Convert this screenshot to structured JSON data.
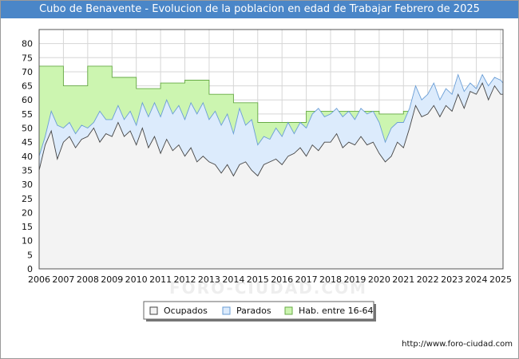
{
  "chart_data": {
    "type": "area",
    "title": "Cubo de Benavente - Evolucion de la poblacion en edad de Trabajar Febrero de 2025",
    "xlabel": "",
    "ylabel": "",
    "xlim": [
      2006,
      2025.1
    ],
    "ylim": [
      0,
      85
    ],
    "x_ticks": [
      "2006",
      "2007",
      "2008",
      "2009",
      "2010",
      "2011",
      "2012",
      "2013",
      "2014",
      "2015",
      "2016",
      "2017",
      "2018",
      "2019",
      "2020",
      "2021",
      "2022",
      "2023",
      "2024",
      "2025"
    ],
    "y_ticks": [
      0,
      5,
      10,
      15,
      20,
      25,
      30,
      35,
      40,
      45,
      50,
      55,
      60,
      65,
      70,
      75,
      80
    ],
    "grid": true,
    "legend": [
      "Ocupados",
      "Parados",
      "Hab. entre 16-64"
    ],
    "series": [
      {
        "name": "Hab. entre 16-64",
        "color": "#ccf5b0",
        "line": "#66aa44",
        "step": true,
        "x": [
          2006.0,
          2007.0,
          2008.0,
          2009.0,
          2010.0,
          2011.0,
          2012.0,
          2013.0,
          2014.0,
          2015.0,
          2016.0,
          2017.0,
          2018.0,
          2019.0,
          2020.0,
          2021.0,
          2022.0,
          2023.0,
          2024.0,
          2025.0
        ],
        "values": [
          72,
          65,
          72,
          68,
          64,
          66,
          67,
          62,
          59,
          52,
          52,
          56,
          56,
          56,
          55,
          56,
          60,
          62,
          64,
          66
        ]
      },
      {
        "name": "Parados",
        "color": "#dcebfc",
        "line": "#6a9ed6",
        "x": [
          2006.0,
          2006.25,
          2006.5,
          2006.75,
          2007.0,
          2007.25,
          2007.5,
          2007.75,
          2008.0,
          2008.25,
          2008.5,
          2008.75,
          2009.0,
          2009.25,
          2009.5,
          2009.75,
          2010.0,
          2010.25,
          2010.5,
          2010.75,
          2011.0,
          2011.25,
          2011.5,
          2011.75,
          2012.0,
          2012.25,
          2012.5,
          2012.75,
          2013.0,
          2013.25,
          2013.5,
          2013.75,
          2014.0,
          2014.25,
          2014.5,
          2014.75,
          2015.0,
          2015.25,
          2015.5,
          2015.75,
          2016.0,
          2016.25,
          2016.5,
          2016.75,
          2017.0,
          2017.25,
          2017.5,
          2017.75,
          2018.0,
          2018.25,
          2018.5,
          2018.75,
          2019.0,
          2019.25,
          2019.5,
          2019.75,
          2020.0,
          2020.25,
          2020.5,
          2020.75,
          2021.0,
          2021.25,
          2021.5,
          2021.75,
          2022.0,
          2022.25,
          2022.5,
          2022.75,
          2023.0,
          2023.25,
          2023.5,
          2023.75,
          2024.0,
          2024.25,
          2024.5,
          2024.75,
          2025.0,
          2025.1
        ],
        "values": [
          40,
          47,
          56,
          51,
          50,
          52,
          48,
          51,
          50,
          52,
          56,
          53,
          53,
          58,
          53,
          56,
          51,
          59,
          54,
          59,
          54,
          60,
          55,
          58,
          53,
          59,
          55,
          59,
          53,
          56,
          51,
          55,
          48,
          57,
          51,
          53,
          44,
          47,
          46,
          50,
          47,
          52,
          48,
          52,
          50,
          55,
          57,
          54,
          55,
          57,
          54,
          56,
          53,
          57,
          55,
          56,
          52,
          45,
          50,
          52,
          52,
          57,
          65,
          60,
          62,
          66,
          60,
          64,
          62,
          69,
          63,
          66,
          64,
          69,
          65,
          68,
          67,
          66
        ]
      },
      {
        "name": "Ocupados",
        "color": "#f3f3f3",
        "line": "#444444",
        "x": [
          2006.0,
          2006.25,
          2006.5,
          2006.75,
          2007.0,
          2007.25,
          2007.5,
          2007.75,
          2008.0,
          2008.25,
          2008.5,
          2008.75,
          2009.0,
          2009.25,
          2009.5,
          2009.75,
          2010.0,
          2010.25,
          2010.5,
          2010.75,
          2011.0,
          2011.25,
          2011.5,
          2011.75,
          2012.0,
          2012.25,
          2012.5,
          2012.75,
          2013.0,
          2013.25,
          2013.5,
          2013.75,
          2014.0,
          2014.25,
          2014.5,
          2014.75,
          2015.0,
          2015.25,
          2015.5,
          2015.75,
          2016.0,
          2016.25,
          2016.5,
          2016.75,
          2017.0,
          2017.25,
          2017.5,
          2017.75,
          2018.0,
          2018.25,
          2018.5,
          2018.75,
          2019.0,
          2019.25,
          2019.5,
          2019.75,
          2020.0,
          2020.25,
          2020.5,
          2020.75,
          2021.0,
          2021.25,
          2021.5,
          2021.75,
          2022.0,
          2022.25,
          2022.5,
          2022.75,
          2023.0,
          2023.25,
          2023.5,
          2023.75,
          2024.0,
          2024.25,
          2024.5,
          2024.75,
          2025.0,
          2025.1
        ],
        "values": [
          35,
          44,
          49,
          39,
          45,
          47,
          43,
          46,
          47,
          50,
          45,
          48,
          47,
          52,
          47,
          49,
          44,
          50,
          43,
          47,
          41,
          46,
          42,
          44,
          40,
          43,
          38,
          40,
          38,
          37,
          34,
          37,
          33,
          37,
          38,
          35,
          33,
          37,
          38,
          39,
          37,
          40,
          41,
          43,
          40,
          44,
          42,
          45,
          45,
          48,
          43,
          45,
          44,
          47,
          44,
          45,
          41,
          38,
          40,
          45,
          43,
          50,
          58,
          54,
          55,
          58,
          54,
          58,
          56,
          62,
          57,
          63,
          62,
          66,
          60,
          65,
          62,
          62
        ]
      }
    ]
  },
  "legend_labels": [
    "Ocupados",
    "Parados",
    "Hab. entre 16-64"
  ],
  "footer": "http://www.foro-ciudad.com",
  "watermark": "FORO-CIUDAD.COM"
}
